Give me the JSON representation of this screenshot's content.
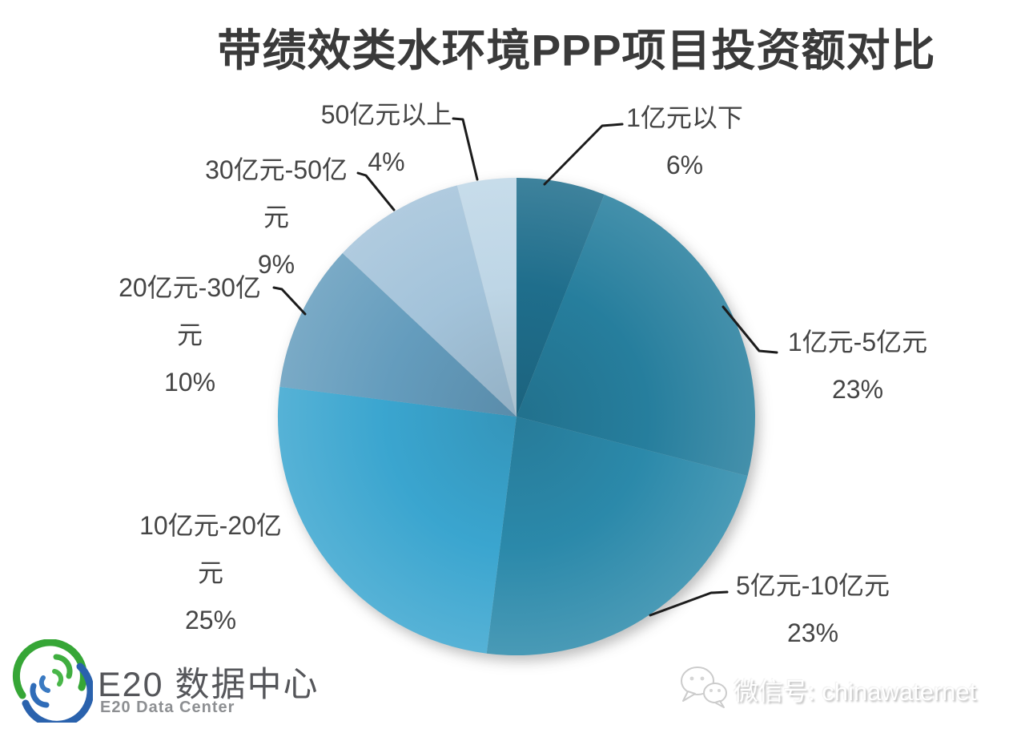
{
  "title": "带绩效类水环境PPP项目投资额对比",
  "chart_data": {
    "type": "pie",
    "title": "带绩效类水环境PPP项目投资额对比",
    "unit": "percent",
    "start_angle": "12-o'clock",
    "direction": "clockwise",
    "legend_position": "outside-callout-labels",
    "categories": [
      "1亿元以下",
      "1亿元-5亿元",
      "5亿元-10亿元",
      "10亿元-20亿元",
      "20亿元-30亿元",
      "30亿元-50亿元",
      "50亿元以上"
    ],
    "values": [
      6,
      23,
      23,
      25,
      10,
      9,
      4
    ],
    "colors": [
      "#1f6e8c",
      "#267e9d",
      "#2b89aa",
      "#3aa5cf",
      "#649cbd",
      "#a3c3da",
      "#bed6e6"
    ]
  },
  "callouts": [
    {
      "lines": [
        "1亿元以下"
      ],
      "pct": "6%"
    },
    {
      "lines": [
        "1亿元-5亿元"
      ],
      "pct": "23%"
    },
    {
      "lines": [
        "5亿元-10亿元"
      ],
      "pct": "23%"
    },
    {
      "lines": [
        "10亿元-20亿",
        "元"
      ],
      "pct": "25%"
    },
    {
      "lines": [
        "20亿元-30亿",
        "元"
      ],
      "pct": "10%"
    },
    {
      "lines": [
        "30亿元-50亿",
        "元"
      ],
      "pct": "9%"
    },
    {
      "lines": [
        "50亿元以上"
      ],
      "pct": "4%"
    }
  ],
  "footer": {
    "logo_cn": "E20 数据中心",
    "logo_en": "E20 Data Center",
    "wechat": "微信号: chinawaternet"
  }
}
